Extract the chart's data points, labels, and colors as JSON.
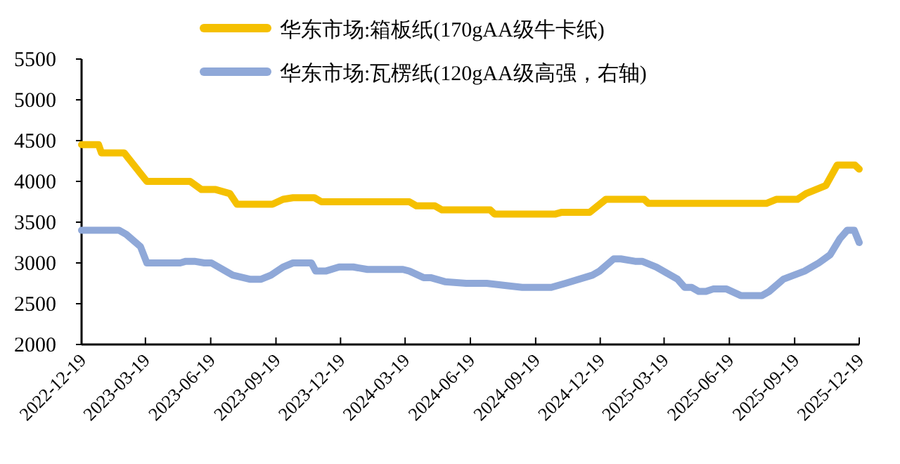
{
  "chart_data": {
    "type": "line",
    "legend": "top",
    "grid": false,
    "xlim": [
      "2022-12-19",
      "2025-12-19"
    ],
    "xticks": [
      "2022-12-19",
      "2023-03-19",
      "2023-06-19",
      "2023-09-19",
      "2023-12-19",
      "2024-03-19",
      "2024-06-19",
      "2024-09-19",
      "2024-12-19",
      "2025-03-19",
      "2025-06-19",
      "2025-09-19",
      "2025-12-19"
    ],
    "ylim": [
      2000,
      5500
    ],
    "yticks": [
      2000,
      2500,
      3000,
      3500,
      4000,
      4500,
      5000,
      5500
    ],
    "series": [
      {
        "name": "华东市场:箱板纸(170gAA级牛卡纸)",
        "color": "#f5c000",
        "x": [
          "2022-12-19",
          "2023-01-12",
          "2023-01-16",
          "2023-02-17",
          "2023-03-21",
          "2023-05-21",
          "2023-06-06",
          "2023-06-26",
          "2023-07-16",
          "2023-07-26",
          "2023-09-14",
          "2023-09-29",
          "2023-10-13",
          "2023-11-12",
          "2023-11-22",
          "2024-03-25",
          "2024-04-04",
          "2024-04-30",
          "2024-05-10",
          "2024-07-17",
          "2024-07-23",
          "2024-10-17",
          "2024-10-25",
          "2024-12-04",
          "2024-12-27",
          "2025-02-19",
          "2025-02-25",
          "2025-08-10",
          "2025-08-24",
          "2025-09-23",
          "2025-10-05",
          "2025-11-02",
          "2025-11-18",
          "2025-12-13",
          "2025-12-19"
        ],
        "values": [
          4450,
          4450,
          4350,
          4350,
          4000,
          4000,
          3900,
          3900,
          3850,
          3720,
          3720,
          3780,
          3800,
          3800,
          3750,
          3750,
          3700,
          3700,
          3650,
          3650,
          3600,
          3600,
          3620,
          3620,
          3780,
          3780,
          3730,
          3730,
          3780,
          3780,
          3850,
          3950,
          4200,
          4200,
          4150
        ]
      },
      {
        "name": "华东市场:瓦楞纸(120gAA级高强，右轴)",
        "color": "#8fa8d8",
        "x": [
          "2022-12-19",
          "2023-02-10",
          "2023-02-20",
          "2023-03-12",
          "2023-03-21",
          "2023-05-07",
          "2023-05-15",
          "2023-05-27",
          "2023-06-10",
          "2023-06-20",
          "2023-07-10",
          "2023-07-20",
          "2023-08-13",
          "2023-08-29",
          "2023-09-12",
          "2023-09-29",
          "2023-10-13",
          "2023-11-08",
          "2023-11-14",
          "2023-11-28",
          "2023-12-17",
          "2024-01-06",
          "2024-01-26",
          "2024-03-16",
          "2024-03-25",
          "2024-04-14",
          "2024-04-24",
          "2024-05-14",
          "2024-06-13",
          "2024-07-12",
          "2024-08-11",
          "2024-08-31",
          "2024-10-11",
          "2024-10-31",
          "2024-12-08",
          "2024-12-18",
          "2025-01-07",
          "2025-01-17",
          "2025-02-06",
          "2025-02-16",
          "2025-03-08",
          "2025-04-07",
          "2025-04-17",
          "2025-04-27",
          "2025-05-07",
          "2025-05-17",
          "2025-05-27",
          "2025-06-15",
          "2025-07-05",
          "2025-08-04",
          "2025-08-14",
          "2025-09-03",
          "2025-10-03",
          "2025-10-23",
          "2025-11-08",
          "2025-11-22",
          "2025-12-02",
          "2025-12-12",
          "2025-12-19"
        ],
        "values": [
          3400,
          3400,
          3350,
          3200,
          3000,
          3000,
          3020,
          3020,
          3000,
          3000,
          2900,
          2850,
          2800,
          2800,
          2850,
          2950,
          3000,
          3000,
          2900,
          2900,
          2950,
          2950,
          2920,
          2920,
          2900,
          2820,
          2820,
          2770,
          2750,
          2750,
          2720,
          2700,
          2700,
          2750,
          2850,
          2900,
          3050,
          3050,
          3020,
          3020,
          2950,
          2800,
          2700,
          2700,
          2650,
          2650,
          2680,
          2680,
          2600,
          2600,
          2650,
          2800,
          2900,
          3000,
          3100,
          3300,
          3400,
          3400,
          3250
        ]
      }
    ]
  }
}
